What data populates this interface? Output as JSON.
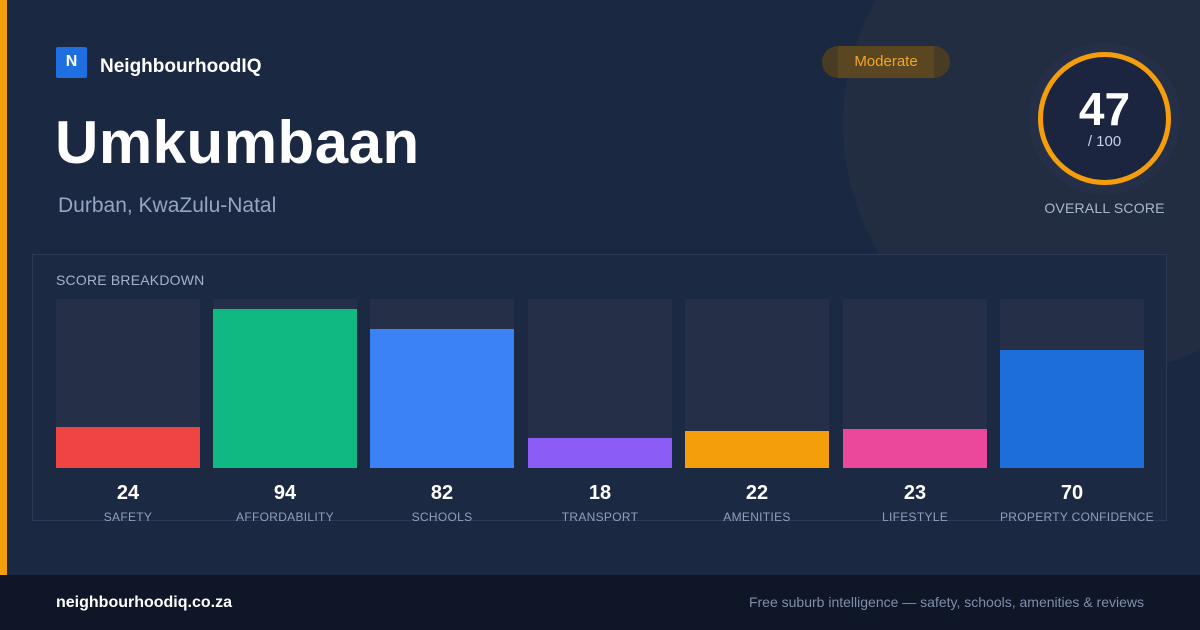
{
  "brand": {
    "logo_letter": "N",
    "name": "NeighbourhoodIQ",
    "logo_color": "#1e6fe0"
  },
  "badge": {
    "label": "Moderate",
    "color": "#f5a524"
  },
  "suburb": {
    "name": "Umkumbaan",
    "location": "Durban, KwaZulu-Natal"
  },
  "overall": {
    "score": "47",
    "max_label": "/ 100",
    "caption": "OVERALL SCORE",
    "score_value": 47,
    "ring_color": "#f59e0b"
  },
  "breakdown": {
    "title": "SCORE BREAKDOWN",
    "items": [
      {
        "value": 24,
        "value_text": "24",
        "label": "SAFETY",
        "color": "#ef4444"
      },
      {
        "value": 94,
        "value_text": "94",
        "label": "AFFORDABILITY",
        "color": "#10b981"
      },
      {
        "value": 82,
        "value_text": "82",
        "label": "SCHOOLS",
        "color": "#3b82f6"
      },
      {
        "value": 18,
        "value_text": "18",
        "label": "TRANSPORT",
        "color": "#8b5cf6"
      },
      {
        "value": 22,
        "value_text": "22",
        "label": "AMENITIES",
        "color": "#f59e0b"
      },
      {
        "value": 23,
        "value_text": "23",
        "label": "LIFESTYLE",
        "color": "#ec4899"
      },
      {
        "value": 70,
        "value_text": "70",
        "label": "PROPERTY CONFIDENCE",
        "color": "#1d6ed8"
      }
    ]
  },
  "footer": {
    "domain": "neighbourhoodiq.co.za",
    "tagline": "Free suburb intelligence — safety, schools, amenities & reviews"
  },
  "theme": {
    "accent": "#f59e0b",
    "background": "#1b2842",
    "footer_background": "#0e1628"
  }
}
